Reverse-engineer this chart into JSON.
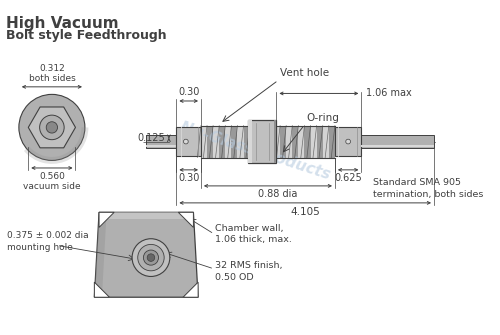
{
  "title1": "High Vacuum",
  "title2": "Bolt style Feedthrough",
  "bg_color": "#ffffff",
  "line_color": "#404040",
  "dim_color": "#404040",
  "gray_fill": "#c0c0c0",
  "gray_dark": "#909090",
  "gray_med": "#b0b0b0",
  "gray_light": "#d8d8d8",
  "gray_thread_light": "#d4d4d4",
  "gray_thread_dark": "#999999",
  "watermark": "Nu-Glass Products",
  "watermark_color": "#b8cce0",
  "annotations": {
    "vent_hole": "Vent hole",
    "o_ring": "O-ring",
    "dim_030_top": "0.30",
    "dim_0125": "0.125",
    "dim_030_bot": "0.30",
    "dim_088": "0.88 dia",
    "dim_0625": "0.625",
    "dim_106max": "1.06 max",
    "dim_4105": "4.105",
    "dim_0312": "0.312\nboth sides",
    "dim_0560": "0.560\nvacuum side",
    "sma": "Standard SMA 905\ntermination, both sides",
    "chamber": "Chamber wall,\n1.06 thick, max.",
    "rms": "32 RMS finish,\n0.50 OD",
    "mounting": "0.375 ± 0.002 dia\nmounting hole"
  }
}
